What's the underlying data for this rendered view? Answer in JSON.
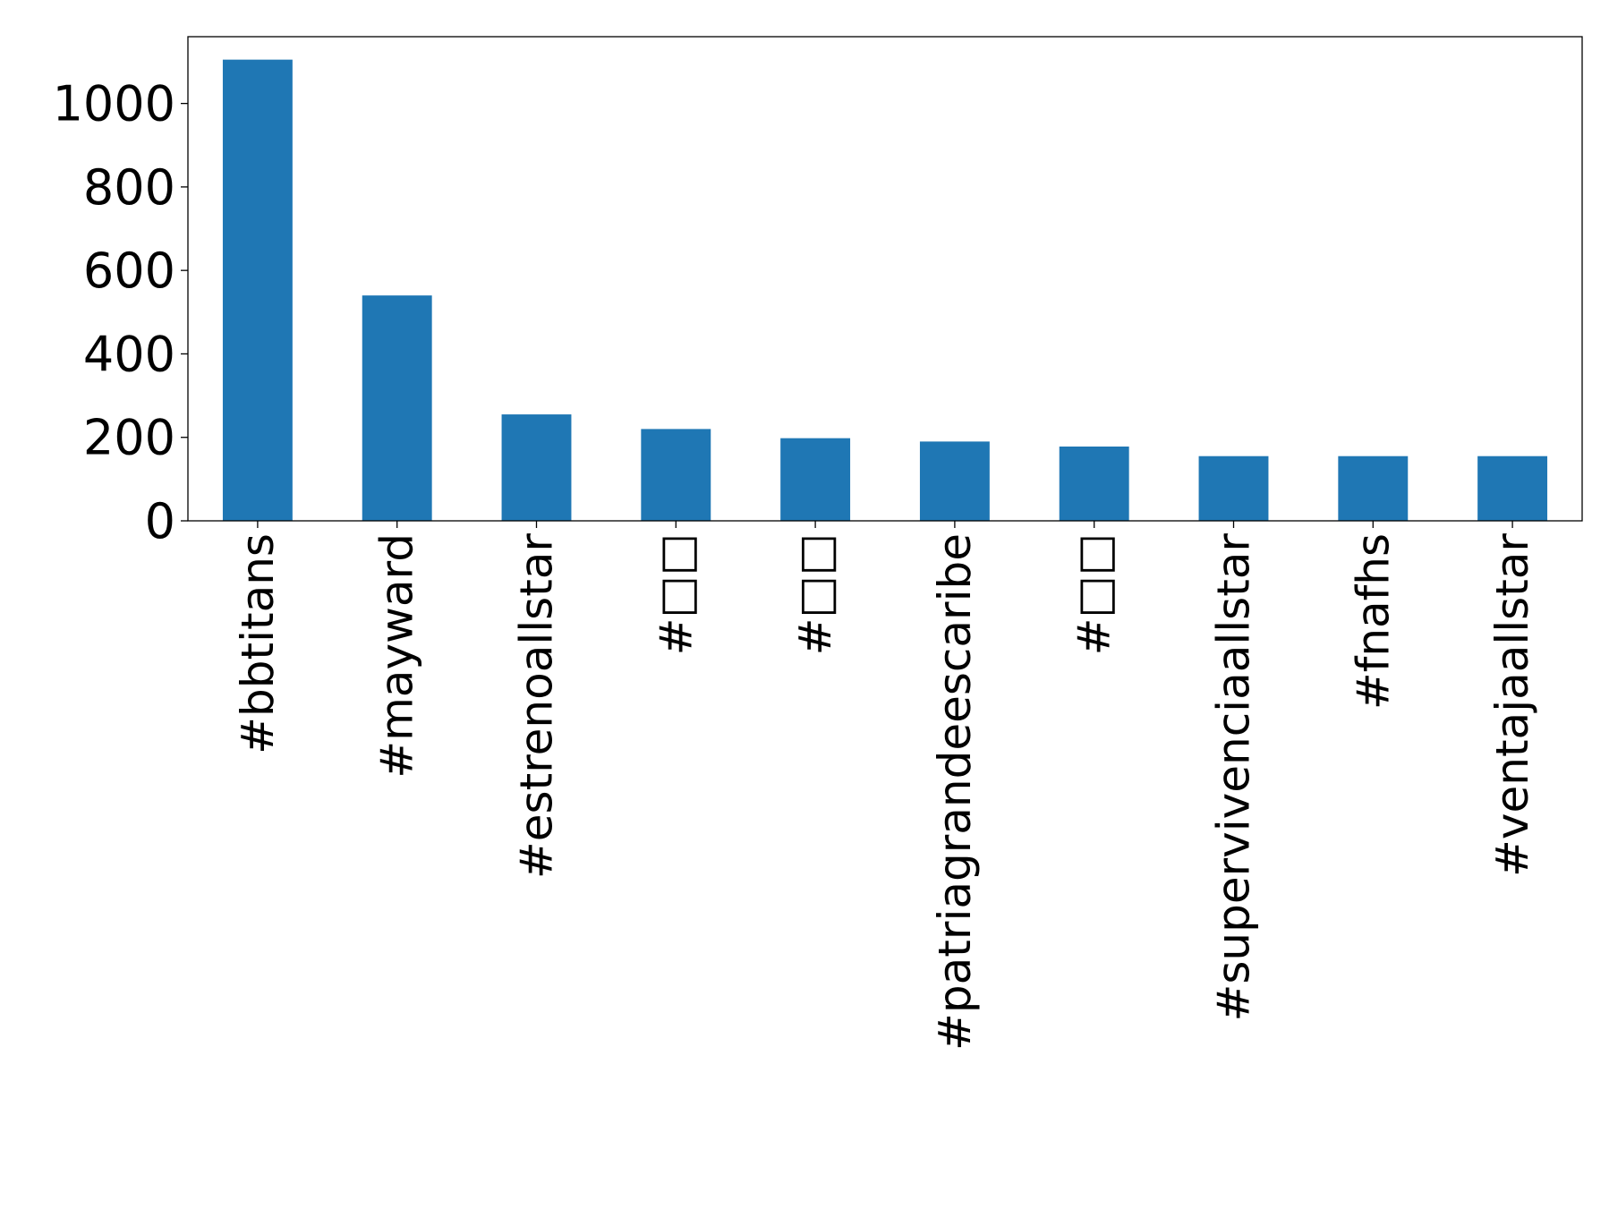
{
  "chart_data": {
    "type": "bar",
    "title": "",
    "xlabel": "",
    "ylabel": "",
    "categories": [
      "#bbtitans",
      "#mayward",
      "#estrenoallstar",
      "#□□",
      "#□□",
      "#patriagrandeescaribe",
      "#□□",
      "#supervivenciaallstar",
      "#fnafhs",
      "#ventajaallstar"
    ],
    "values": [
      1105,
      540,
      255,
      220,
      198,
      190,
      178,
      155,
      155,
      155
    ],
    "ylim": [
      0,
      1160
    ],
    "yticks": [
      0,
      200,
      400,
      600,
      800,
      1000
    ],
    "ytick_labels": [
      "0",
      "200",
      "400",
      "600",
      "800",
      "1000"
    ],
    "bar_color": "#1f77b4",
    "grid": false,
    "legend": "none"
  }
}
